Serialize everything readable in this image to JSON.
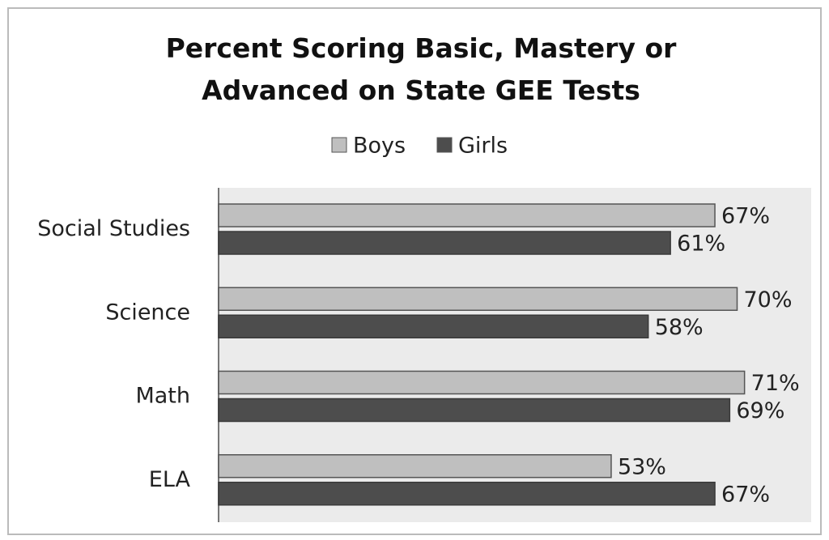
{
  "chart_data": {
    "type": "bar",
    "orientation": "horizontal",
    "title": "Percent Scoring Basic, Mastery or Advanced on State GEE Tests",
    "categories": [
      "Social Studies",
      "Science",
      "Math",
      "ELA"
    ],
    "series": [
      {
        "name": "Boys",
        "color": "#bfbfbf",
        "values": [
          67,
          70,
          71,
          53
        ],
        "value_labels": [
          "67%",
          "70%",
          "71%",
          "53%"
        ]
      },
      {
        "name": "Girls",
        "color": "#4d4d4d",
        "values": [
          61,
          58,
          69,
          67
        ],
        "value_labels": [
          "61%",
          "58%",
          "69%",
          "67%"
        ]
      }
    ],
    "xlim": [
      0,
      80
    ],
    "legend": "top"
  }
}
